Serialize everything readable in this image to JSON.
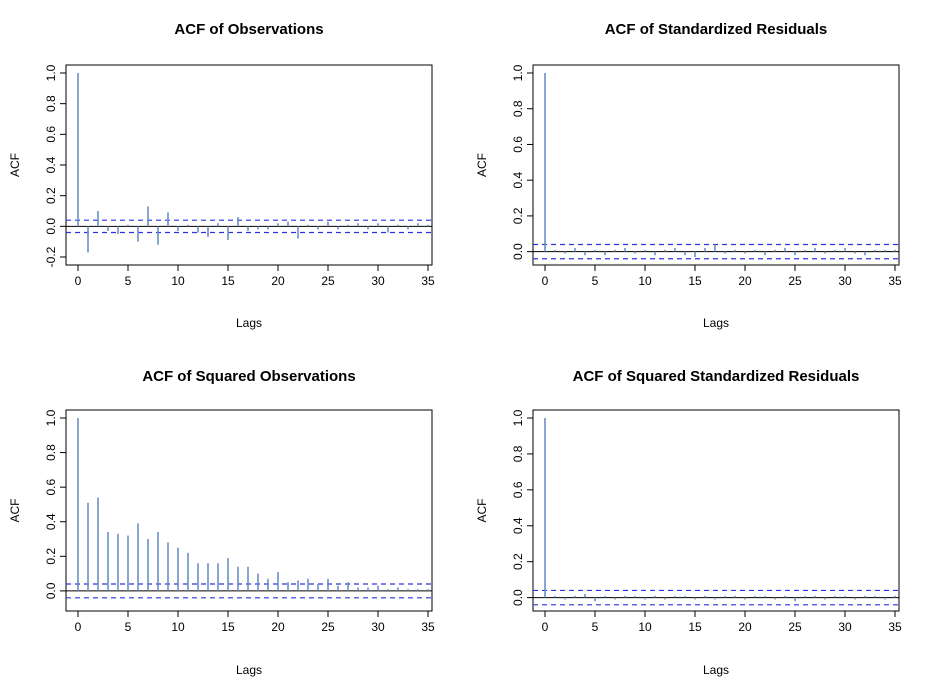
{
  "colors": {
    "bar": "#6b8fc4",
    "bound": "#3030e0",
    "axis": "#000000"
  },
  "chart_data": [
    {
      "type": "bar",
      "title": "ACF of Observations",
      "xlabel": "Lags",
      "ylabel": "ACF",
      "xlim": [
        0,
        35
      ],
      "ylim": [
        -0.2,
        1.0
      ],
      "xticks": [
        "0",
        "5",
        "10",
        "15",
        "20",
        "25",
        "30",
        "35"
      ],
      "yticks": [
        "-0.2",
        "0.0",
        "0.2",
        "0.4",
        "0.6",
        "0.8",
        "1.0"
      ],
      "confidence_bound": 0.04,
      "x": [
        0,
        1,
        2,
        3,
        4,
        5,
        6,
        7,
        8,
        9,
        10,
        11,
        12,
        13,
        14,
        15,
        16,
        17,
        18,
        19,
        20,
        21,
        22,
        23,
        24,
        25,
        26,
        27,
        28,
        29,
        30,
        31,
        32,
        33,
        34,
        35
      ],
      "values": [
        1.0,
        -0.17,
        0.1,
        -0.03,
        -0.05,
        0.01,
        -0.1,
        0.13,
        -0.12,
        0.09,
        -0.03,
        0.01,
        -0.04,
        -0.07,
        0.02,
        -0.09,
        0.06,
        -0.03,
        -0.02,
        -0.02,
        0.02,
        0.03,
        -0.08,
        0.01,
        -0.02,
        0.03,
        -0.02,
        0.01,
        0.02,
        -0.02,
        0.02,
        -0.04,
        0.01,
        -0.02,
        0.02,
        0.01
      ]
    },
    {
      "type": "bar",
      "title": "ACF of Standardized Residuals",
      "xlabel": "Lags",
      "ylabel": "ACF",
      "xlim": [
        0,
        35
      ],
      "ylim": [
        -0.03,
        1.0
      ],
      "xticks": [
        "0",
        "5",
        "10",
        "15",
        "20",
        "25",
        "30",
        "35"
      ],
      "yticks": [
        "0.0",
        "0.2",
        "0.4",
        "0.6",
        "0.8",
        "1.0"
      ],
      "confidence_bound": 0.04,
      "x": [
        0,
        1,
        2,
        3,
        4,
        5,
        6,
        7,
        8,
        9,
        10,
        11,
        12,
        13,
        14,
        15,
        16,
        17,
        18,
        19,
        20,
        21,
        22,
        23,
        24,
        25,
        26,
        27,
        28,
        29,
        30,
        31,
        32,
        33,
        34,
        35
      ],
      "values": [
        1.0,
        0.01,
        -0.01,
        0.02,
        -0.02,
        0.01,
        -0.02,
        0.01,
        0.02,
        -0.01,
        0.01,
        -0.02,
        0.01,
        0.02,
        -0.02,
        -0.03,
        0.02,
        0.04,
        -0.01,
        0.01,
        -0.01,
        0.01,
        -0.02,
        0.01,
        0.02,
        -0.02,
        0.01,
        0.02,
        -0.01,
        0.01,
        0.02,
        -0.01,
        -0.02,
        0.01,
        0.01,
        0.01
      ]
    },
    {
      "type": "bar",
      "title": "ACF of Squared Observations",
      "xlabel": "Lags",
      "ylabel": "ACF",
      "xlim": [
        0,
        35
      ],
      "ylim": [
        -0.07,
        1.0
      ],
      "xticks": [
        "0",
        "5",
        "10",
        "15",
        "20",
        "25",
        "30",
        "35"
      ],
      "yticks": [
        "0.0",
        "0.2",
        "0.4",
        "0.6",
        "0.8",
        "1.0"
      ],
      "confidence_bound": 0.04,
      "x": [
        0,
        1,
        2,
        3,
        4,
        5,
        6,
        7,
        8,
        9,
        10,
        11,
        12,
        13,
        14,
        15,
        16,
        17,
        18,
        19,
        20,
        21,
        22,
        23,
        24,
        25,
        26,
        27,
        28,
        29,
        30,
        31,
        32,
        33,
        34,
        35
      ],
      "values": [
        1.0,
        0.51,
        0.54,
        0.34,
        0.33,
        0.32,
        0.39,
        0.3,
        0.34,
        0.28,
        0.25,
        0.22,
        0.16,
        0.16,
        0.16,
        0.19,
        0.14,
        0.14,
        0.1,
        0.07,
        0.11,
        0.05,
        0.06,
        0.07,
        0.04,
        0.07,
        0.03,
        0.05,
        0.02,
        0.02,
        0.03,
        0.01,
        0.02,
        0.01,
        0.01,
        0.01
      ]
    },
    {
      "type": "bar",
      "title": "ACF of Squared Standardized Residuals",
      "xlabel": "Lags",
      "ylabel": "ACF",
      "xlim": [
        0,
        35
      ],
      "ylim": [
        -0.03,
        1.0
      ],
      "xticks": [
        "0",
        "5",
        "10",
        "15",
        "20",
        "25",
        "30",
        "35"
      ],
      "yticks": [
        "0.0",
        "0.2",
        "0.4",
        "0.6",
        "0.8",
        "1.0"
      ],
      "confidence_bound": 0.04,
      "x": [
        0,
        1,
        2,
        3,
        4,
        5,
        6,
        7,
        8,
        9,
        10,
        11,
        12,
        13,
        14,
        15,
        16,
        17,
        18,
        19,
        20,
        21,
        22,
        23,
        24,
        25,
        26,
        27,
        28,
        29,
        30,
        31,
        32,
        33,
        34,
        35
      ],
      "values": [
        1.0,
        0.01,
        -0.01,
        0.01,
        0.02,
        -0.02,
        0.01,
        -0.01,
        0.01,
        0.01,
        -0.01,
        0.01,
        -0.01,
        0.01,
        0.01,
        -0.01,
        0.01,
        -0.01,
        0.01,
        0.01,
        -0.01,
        0.01,
        0.01,
        -0.01,
        0.01,
        -0.02,
        0.01,
        0.01,
        -0.01,
        0.01,
        0.01,
        -0.01,
        0.01,
        0.01,
        -0.01,
        0.01
      ]
    }
  ]
}
